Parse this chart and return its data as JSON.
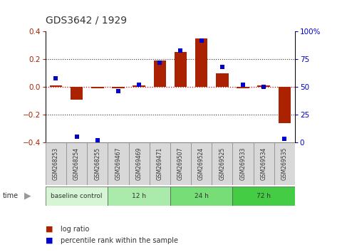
{
  "title": "GDS3642 / 1929",
  "samples": [
    "GSM268253",
    "GSM268254",
    "GSM268255",
    "GSM269467",
    "GSM269469",
    "GSM269471",
    "GSM269507",
    "GSM269524",
    "GSM269525",
    "GSM269533",
    "GSM269534",
    "GSM269535"
  ],
  "log_ratio": [
    0.01,
    -0.09,
    -0.01,
    -0.01,
    0.01,
    0.19,
    0.25,
    0.35,
    0.1,
    -0.01,
    0.01,
    -0.26
  ],
  "percentile_rank": [
    58,
    5,
    2,
    46,
    52,
    72,
    83,
    92,
    68,
    52,
    50,
    3
  ],
  "groups": [
    {
      "label": "baseline control",
      "start": 0,
      "end": 3,
      "color": "#d5f5d5"
    },
    {
      "label": "12 h",
      "start": 3,
      "end": 6,
      "color": "#aaeaaa"
    },
    {
      "label": "24 h",
      "start": 6,
      "end": 9,
      "color": "#77dd77"
    },
    {
      "label": "72 h",
      "start": 9,
      "end": 12,
      "color": "#44cc44"
    }
  ],
  "bar_color": "#aa2200",
  "dot_color": "#0000cc",
  "ylim_left": [
    -0.4,
    0.4
  ],
  "ylim_right": [
    0,
    100
  ],
  "yticks_left": [
    -0.4,
    -0.2,
    0.0,
    0.2,
    0.4
  ],
  "yticks_right": [
    0,
    25,
    50,
    75,
    100
  ],
  "hline_color": "#cc0000",
  "bg_color": "#ffffff",
  "label_bg": "#d8d8d8",
  "fig_width": 4.73,
  "fig_height": 3.54,
  "dpi": 100
}
